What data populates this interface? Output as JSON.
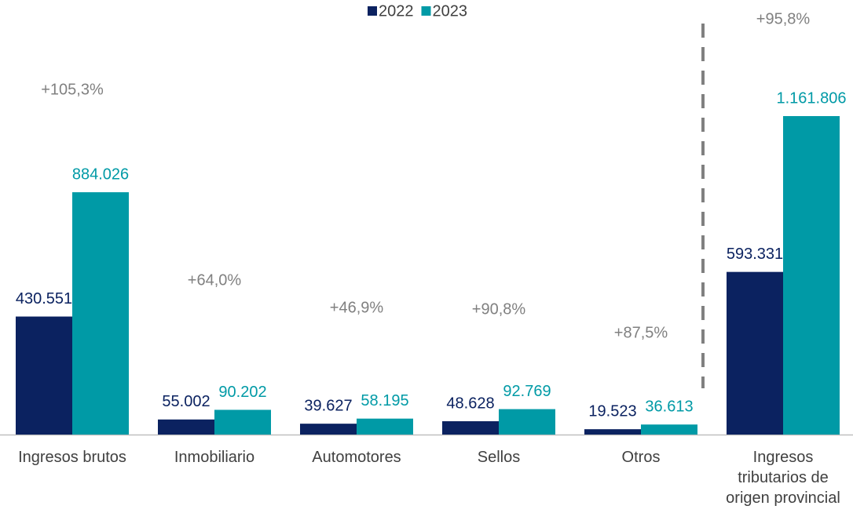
{
  "chart_data": {
    "type": "bar",
    "categories": [
      "Ingresos brutos",
      "Inmobiliario",
      "Automotores",
      "Sellos",
      "Otros",
      "Ingresos tributarios de origen provincial"
    ],
    "series": [
      {
        "name": "2022",
        "color": "#0b2260",
        "values": [
          430551,
          55002,
          39627,
          48628,
          19523,
          593331
        ],
        "value_labels": [
          "430.551",
          "55.002",
          "39.627",
          "48.628",
          "19.523",
          "593.331"
        ]
      },
      {
        "name": "2023",
        "color": "#009aa6",
        "values": [
          884026,
          90202,
          58195,
          92769,
          36613,
          1161806
        ],
        "value_labels": [
          "884.026",
          "90.202",
          "58.195",
          "92.769",
          "36.613",
          "1.161.806"
        ]
      }
    ],
    "annotations": [
      "+105,3%",
      "+64,0%",
      "+46,9%",
      "+90,8%",
      "+87,5%",
      "+95,8%"
    ],
    "legend": "top"
  }
}
